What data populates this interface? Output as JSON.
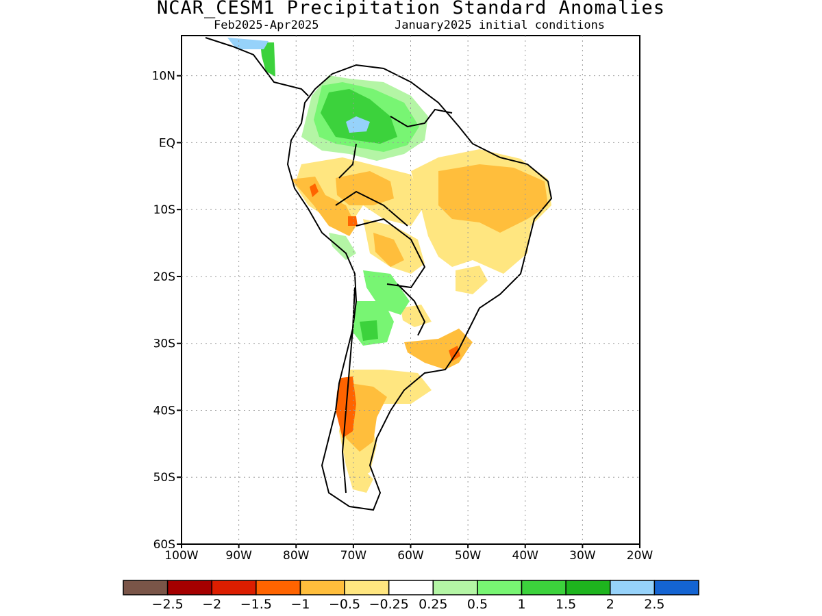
{
  "title": "NCAR_CESM1 Precipitation Standard Anomalies",
  "subtitle_left": "Feb2025-Apr2025",
  "subtitle_right": "January2025 initial conditions",
  "map": {
    "lon_range": [
      -100,
      -20
    ],
    "lat_range": [
      -60,
      16
    ],
    "lat_ticks": [
      {
        "value": 10,
        "label": "10N"
      },
      {
        "value": 0,
        "label": "EQ"
      },
      {
        "value": -10,
        "label": "10S"
      },
      {
        "value": -20,
        "label": "20S"
      },
      {
        "value": -30,
        "label": "30S"
      },
      {
        "value": -40,
        "label": "40S"
      },
      {
        "value": -50,
        "label": "50S"
      },
      {
        "value": -60,
        "label": "60S"
      }
    ],
    "lon_ticks": [
      {
        "value": -100,
        "label": "100W"
      },
      {
        "value": -90,
        "label": "90W"
      },
      {
        "value": -80,
        "label": "80W"
      },
      {
        "value": -70,
        "label": "70W"
      },
      {
        "value": -60,
        "label": "60W"
      },
      {
        "value": -50,
        "label": "50W"
      },
      {
        "value": -40,
        "label": "40W"
      },
      {
        "value": -30,
        "label": "30W"
      },
      {
        "value": -20,
        "label": "20W"
      }
    ]
  },
  "colorbar": {
    "colors": [
      "#7a5548",
      "#a50000",
      "#dc1e00",
      "#ff6400",
      "#ffbe3c",
      "#ffe680",
      "#ffffff",
      "#b4f5a5",
      "#78f573",
      "#3cd23c",
      "#1eb41e",
      "#96d2fa",
      "#1464d2"
    ],
    "labels": [
      "-2.5",
      "-2",
      "-1.5",
      "-1",
      "-0.5",
      "-0.25",
      "0.25",
      "0.5",
      "1",
      "1.5",
      "2",
      "2.5"
    ]
  },
  "legend_categories": {
    "orange": "#ffbe3c",
    "light_orange": "#ffe680",
    "dark_orange": "#ff6400",
    "light_green": "#b4f5a5",
    "green": "#78f573",
    "mid_green": "#3cd23c",
    "dark_green": "#1eb41e",
    "light_blue": "#96d2fa"
  }
}
